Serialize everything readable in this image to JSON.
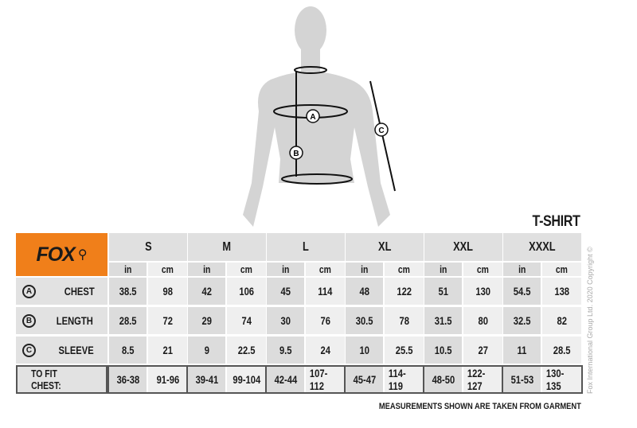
{
  "brand": "FOX",
  "title": "T-SHIRT",
  "sizes": [
    "S",
    "M",
    "L",
    "XL",
    "XXL",
    "XXXL"
  ],
  "units": {
    "in": "in",
    "cm": "cm"
  },
  "rows": [
    {
      "marker": "A",
      "label": "CHEST",
      "values": [
        [
          "38.5",
          "98"
        ],
        [
          "42",
          "106"
        ],
        [
          "45",
          "114"
        ],
        [
          "48",
          "122"
        ],
        [
          "51",
          "130"
        ],
        [
          "54.5",
          "138"
        ]
      ]
    },
    {
      "marker": "B",
      "label": "LENGTH",
      "values": [
        [
          "28.5",
          "72"
        ],
        [
          "29",
          "74"
        ],
        [
          "30",
          "76"
        ],
        [
          "30.5",
          "78"
        ],
        [
          "31.5",
          "80"
        ],
        [
          "32.5",
          "82"
        ]
      ]
    },
    {
      "marker": "C",
      "label": "SLEEVE",
      "values": [
        [
          "8.5",
          "21"
        ],
        [
          "9",
          "22.5"
        ],
        [
          "9.5",
          "24"
        ],
        [
          "10",
          "25.5"
        ],
        [
          "10.5",
          "27"
        ],
        [
          "11",
          "28.5"
        ]
      ]
    }
  ],
  "fit": {
    "label": "TO FIT CHEST:",
    "values": [
      [
        "36-38",
        "91-96"
      ],
      [
        "39-41",
        "99-104"
      ],
      [
        "42-44",
        "107-112"
      ],
      [
        "45-47",
        "114-119"
      ],
      [
        "48-50",
        "122-127"
      ],
      [
        "51-53",
        "130-135"
      ]
    ]
  },
  "note": "MEASUREMENTS SHOWN ARE TAKEN FROM GARMENT",
  "copyright": "Fox International Group Ltd. 2020 Copyright ©",
  "figure_markers": [
    "A",
    "B",
    "C"
  ],
  "colors": {
    "brand_orange": "#f07f1a",
    "header_gray": "#e0e0e0",
    "in_col": "#dcdcdc",
    "cm_col": "#efefef"
  }
}
